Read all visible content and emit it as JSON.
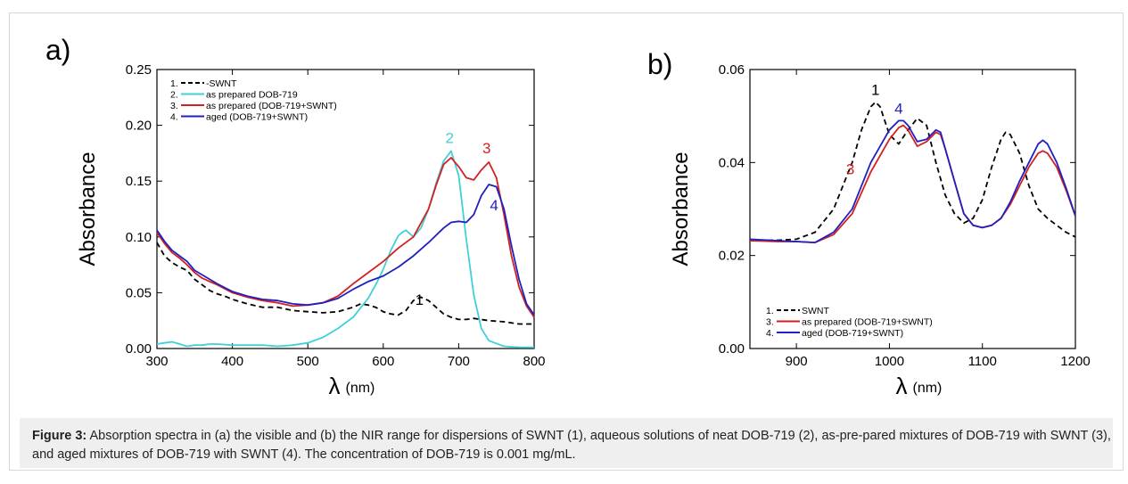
{
  "caption": {
    "label": "Figure 3:",
    "text": " Absorption spectra in (a) the visible and (b) the NIR range for dispersions of SWNT (1), aqueous solutions of neat DOB-719 (2), as-pre-pared mixtures of DOB-719 with SWNT (3), and aged mixtures of DOB-719 with SWNT (4). The concentration of DOB-719 is 0.001 mg/mL."
  },
  "colors": {
    "swnt": "#000000",
    "dob": "#40d0d8",
    "prepared": "#d42020",
    "aged": "#2020c0"
  },
  "chart_data": [
    {
      "panel_label": "a)",
      "type": "line",
      "xlabel_symbol": "λ",
      "xlabel_unit": "(nm)",
      "ylabel": "Absorbance",
      "xlim": [
        300,
        800
      ],
      "ylim": [
        0,
        0.25
      ],
      "xticks": [
        "300",
        "400",
        "500",
        "600",
        "700",
        "800"
      ],
      "yticks": [
        "0.00",
        "0.05",
        "0.10",
        "0.15",
        "0.20",
        "0.25"
      ],
      "legend": {
        "placement": "top-left",
        "entries": [
          "1.",
          "-SWNT",
          "2.",
          "as prepared DOB-719",
          "3.",
          "as prepared (DOB-719+SWNT)",
          "4.",
          "aged (DOB-719+SWNT)"
        ]
      },
      "annotations": [
        {
          "text": "1",
          "x": 648,
          "y": 0.039,
          "color": "#000000"
        },
        {
          "text": "2",
          "x": 688,
          "y": 0.184,
          "color": "#40d0d8"
        },
        {
          "text": "3",
          "x": 737,
          "y": 0.175,
          "color": "#d42020"
        },
        {
          "text": "4",
          "x": 747,
          "y": 0.124,
          "color": "#2020c0"
        }
      ],
      "series": [
        {
          "label_num": "1",
          "color": "#000000",
          "dash": "6,4",
          "x": [
            300,
            310,
            320,
            330,
            340,
            350,
            360,
            370,
            380,
            390,
            400,
            420,
            440,
            460,
            480,
            500,
            520,
            540,
            560,
            570,
            580,
            590,
            600,
            610,
            620,
            630,
            640,
            650,
            660,
            670,
            680,
            690,
            700,
            710,
            720,
            740,
            760,
            780,
            800
          ],
          "y": [
            0.095,
            0.083,
            0.077,
            0.073,
            0.07,
            0.062,
            0.057,
            0.052,
            0.049,
            0.047,
            0.044,
            0.04,
            0.037,
            0.037,
            0.034,
            0.033,
            0.032,
            0.033,
            0.037,
            0.04,
            0.039,
            0.037,
            0.033,
            0.031,
            0.03,
            0.034,
            0.043,
            0.046,
            0.043,
            0.037,
            0.031,
            0.028,
            0.026,
            0.026,
            0.027,
            0.025,
            0.024,
            0.022,
            0.022
          ]
        },
        {
          "label_num": "2",
          "color": "#40d0d8",
          "dash": "",
          "x": [
            300,
            310,
            320,
            330,
            340,
            350,
            360,
            370,
            380,
            400,
            420,
            440,
            460,
            480,
            500,
            520,
            540,
            560,
            580,
            590,
            600,
            610,
            620,
            625,
            630,
            640,
            650,
            660,
            670,
            680,
            690,
            700,
            710,
            720,
            730,
            740,
            760,
            780,
            800
          ],
          "y": [
            0.004,
            0.005,
            0.006,
            0.004,
            0.002,
            0.003,
            0.003,
            0.004,
            0.004,
            0.003,
            0.003,
            0.003,
            0.002,
            0.003,
            0.005,
            0.01,
            0.018,
            0.028,
            0.045,
            0.057,
            0.071,
            0.088,
            0.101,
            0.104,
            0.106,
            0.1,
            0.108,
            0.125,
            0.148,
            0.168,
            0.177,
            0.155,
            0.098,
            0.048,
            0.018,
            0.007,
            0.002,
            0.001,
            0.001
          ]
        },
        {
          "label_num": "3",
          "color": "#d42020",
          "dash": "",
          "x": [
            300,
            310,
            320,
            330,
            340,
            350,
            360,
            370,
            380,
            400,
            420,
            440,
            460,
            480,
            500,
            520,
            540,
            560,
            580,
            600,
            620,
            640,
            660,
            670,
            680,
            690,
            700,
            710,
            720,
            730,
            740,
            750,
            760,
            770,
            780,
            790,
            800
          ],
          "y": [
            0.104,
            0.094,
            0.086,
            0.081,
            0.075,
            0.068,
            0.063,
            0.06,
            0.057,
            0.05,
            0.046,
            0.043,
            0.041,
            0.038,
            0.039,
            0.041,
            0.047,
            0.058,
            0.068,
            0.078,
            0.09,
            0.1,
            0.125,
            0.146,
            0.165,
            0.171,
            0.163,
            0.153,
            0.151,
            0.16,
            0.167,
            0.153,
            0.12,
            0.083,
            0.055,
            0.038,
            0.028
          ]
        },
        {
          "label_num": "4",
          "color": "#2020c0",
          "dash": "",
          "x": [
            300,
            310,
            320,
            330,
            340,
            350,
            360,
            370,
            380,
            400,
            420,
            440,
            460,
            480,
            500,
            520,
            540,
            560,
            580,
            600,
            620,
            640,
            660,
            680,
            690,
            700,
            710,
            720,
            730,
            740,
            750,
            760,
            770,
            780,
            790,
            800
          ],
          "y": [
            0.106,
            0.096,
            0.088,
            0.083,
            0.078,
            0.07,
            0.066,
            0.062,
            0.058,
            0.051,
            0.047,
            0.044,
            0.043,
            0.04,
            0.039,
            0.041,
            0.045,
            0.053,
            0.06,
            0.065,
            0.073,
            0.083,
            0.095,
            0.108,
            0.113,
            0.114,
            0.113,
            0.12,
            0.137,
            0.147,
            0.145,
            0.125,
            0.092,
            0.062,
            0.04,
            0.03
          ]
        }
      ]
    },
    {
      "panel_label": "b)",
      "type": "line",
      "xlabel_symbol": "λ",
      "xlabel_unit": "(nm)",
      "ylabel": "Absorbance",
      "xlim": [
        850,
        1200
      ],
      "ylim": [
        0,
        0.06
      ],
      "xticks": [
        "900",
        "1000",
        "1100",
        "1200"
      ],
      "yticks": [
        "0.00",
        "0.02",
        "0.04",
        "0.06"
      ],
      "legend": {
        "placement": "bottom-left",
        "entries": [
          "1.",
          "SWNT",
          "3.",
          "as prepared (DOB-719+SWNT)",
          "4.",
          "aged (DOB-719+SWNT)"
        ]
      },
      "annotations": [
        {
          "text": "1",
          "x": 985,
          "y": 0.0545,
          "color": "#000000"
        },
        {
          "text": "4",
          "x": 1010,
          "y": 0.0505,
          "color": "#2020c0"
        },
        {
          "text": "3",
          "x": 958,
          "y": 0.0375,
          "color": "#d42020"
        }
      ],
      "series": [
        {
          "label_num": "1",
          "color": "#000000",
          "dash": "6,4",
          "x": [
            850,
            880,
            900,
            920,
            940,
            960,
            970,
            980,
            985,
            990,
            1000,
            1010,
            1020,
            1030,
            1040,
            1050,
            1060,
            1070,
            1080,
            1090,
            1100,
            1110,
            1120,
            1125,
            1130,
            1140,
            1150,
            1160,
            1170,
            1180,
            1190,
            1200
          ],
          "y": [
            0.0232,
            0.0233,
            0.0235,
            0.025,
            0.03,
            0.04,
            0.047,
            0.052,
            0.053,
            0.052,
            0.046,
            0.044,
            0.047,
            0.0495,
            0.048,
            0.04,
            0.033,
            0.029,
            0.027,
            0.028,
            0.032,
            0.039,
            0.045,
            0.0465,
            0.046,
            0.042,
            0.035,
            0.03,
            0.028,
            0.0265,
            0.025,
            0.024
          ]
        },
        {
          "label_num": "3",
          "color": "#d42020",
          "dash": "",
          "x": [
            850,
            880,
            900,
            920,
            940,
            960,
            980,
            1000,
            1010,
            1015,
            1020,
            1030,
            1040,
            1050,
            1055,
            1060,
            1070,
            1080,
            1090,
            1100,
            1110,
            1120,
            1130,
            1140,
            1150,
            1160,
            1165,
            1170,
            1180,
            1190,
            1200
          ],
          "y": [
            0.0232,
            0.023,
            0.023,
            0.0228,
            0.0245,
            0.029,
            0.038,
            0.045,
            0.0475,
            0.048,
            0.047,
            0.0435,
            0.0445,
            0.0465,
            0.046,
            0.043,
            0.036,
            0.029,
            0.0265,
            0.026,
            0.0265,
            0.028,
            0.031,
            0.035,
            0.039,
            0.042,
            0.0425,
            0.042,
            0.039,
            0.034,
            0.0285
          ]
        },
        {
          "label_num": "4",
          "color": "#2020c0",
          "dash": "",
          "x": [
            850,
            880,
            900,
            920,
            940,
            960,
            980,
            1000,
            1010,
            1015,
            1020,
            1030,
            1040,
            1050,
            1055,
            1060,
            1070,
            1080,
            1090,
            1100,
            1110,
            1120,
            1130,
            1140,
            1150,
            1160,
            1165,
            1170,
            1180,
            1190,
            1200
          ],
          "y": [
            0.0235,
            0.0232,
            0.023,
            0.0228,
            0.025,
            0.03,
            0.04,
            0.047,
            0.049,
            0.049,
            0.048,
            0.0445,
            0.045,
            0.047,
            0.0465,
            0.043,
            0.036,
            0.029,
            0.0265,
            0.026,
            0.0265,
            0.028,
            0.0315,
            0.036,
            0.04,
            0.044,
            0.0448,
            0.044,
            0.04,
            0.0345,
            0.0285
          ]
        }
      ]
    }
  ]
}
